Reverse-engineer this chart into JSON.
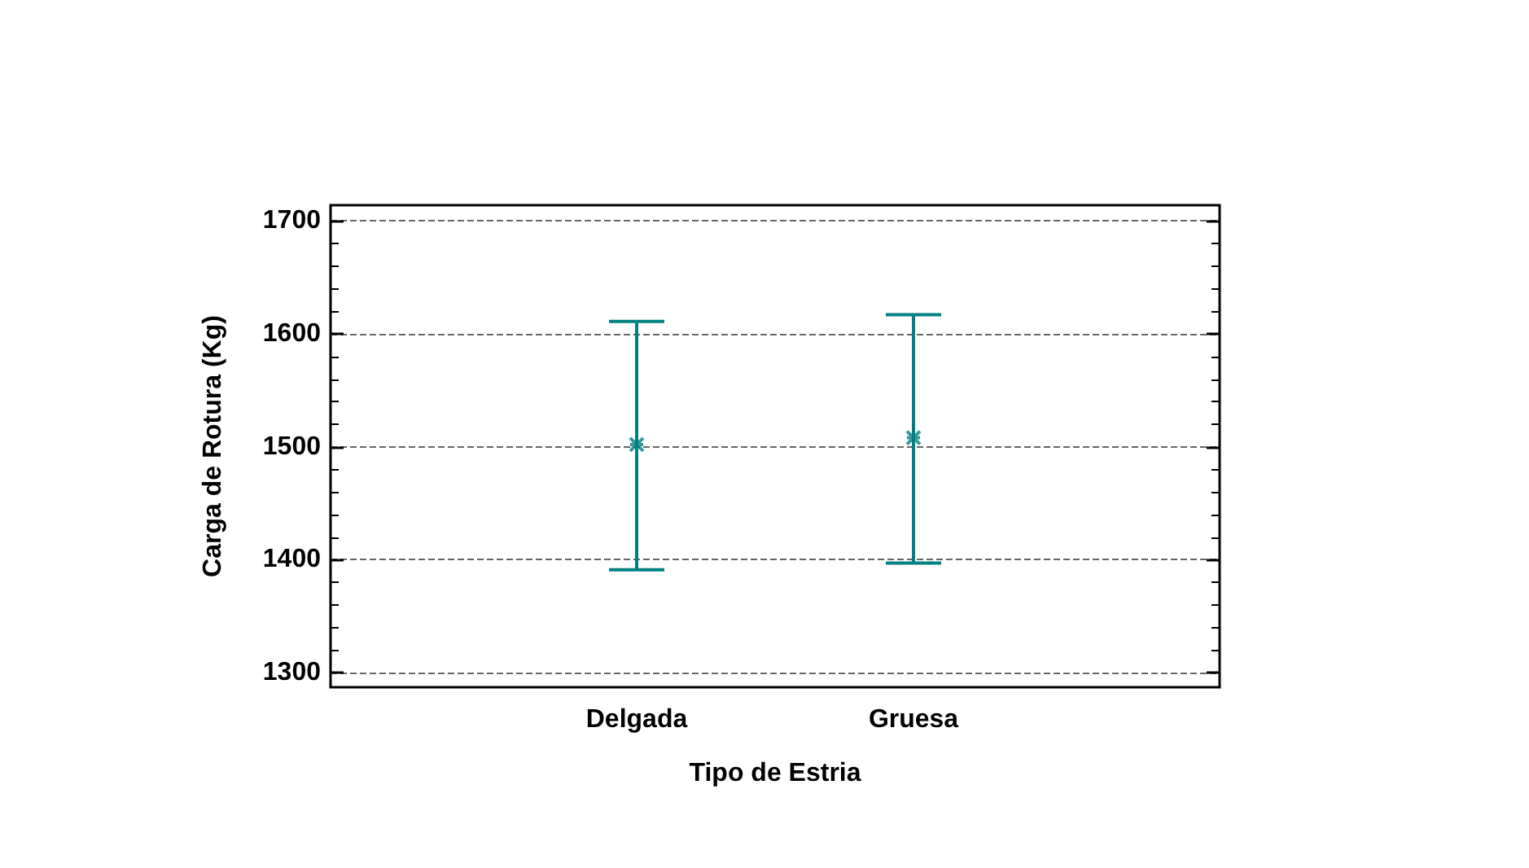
{
  "chart_data": {
    "type": "scatter",
    "xlabel": "Tipo de Estria",
    "ylabel": "Carga de Rotura (Kg)",
    "categories": [
      "Delgada",
      "Gruesa"
    ],
    "values": [
      1502,
      1508
    ],
    "errors": [
      [
        1391,
        1611
      ],
      [
        1397,
        1617
      ]
    ],
    "color": "#008080",
    "marker": "cross",
    "ylim": [
      1287,
      1714
    ],
    "yticks": [
      1300,
      1400,
      1500,
      1600,
      1700
    ],
    "grid": "y"
  }
}
